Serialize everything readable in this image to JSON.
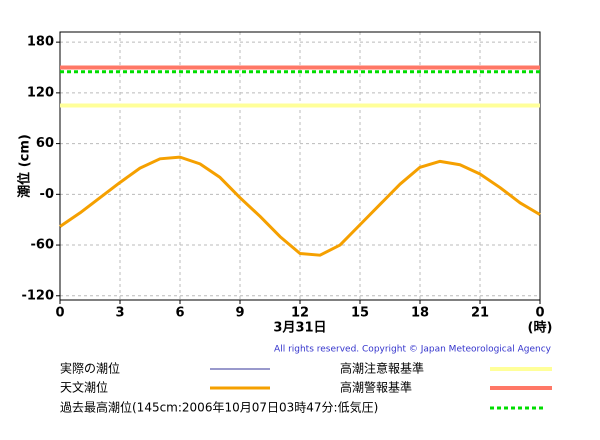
{
  "chart_data": {
    "type": "line",
    "y_label": "潮位 (cm)",
    "x_label": "3月31日",
    "x_unit": "(時)",
    "copyright": "All rights reserved. Copyright © Japan Meteorological Agency",
    "xlim": [
      0,
      24
    ],
    "xticks": [
      0,
      3,
      6,
      9,
      12,
      15,
      18,
      21,
      {
        "value": 24,
        "label": "0"
      }
    ],
    "ylim": [
      -125,
      192
    ],
    "yticks": [
      180,
      120,
      60,
      {
        "value": 0,
        "label": "-0"
      },
      -60,
      -120
    ],
    "grid": true,
    "x": [
      0,
      1,
      2,
      3,
      4,
      5,
      6,
      7,
      8,
      9,
      10,
      11,
      12,
      13,
      14,
      15,
      16,
      17,
      18,
      19,
      20,
      21,
      22,
      23,
      24
    ],
    "series": [
      {
        "name": "実際の潮位",
        "color": "#333399",
        "values": [
          null,
          null,
          null,
          null,
          null,
          null,
          null,
          null,
          null,
          null,
          null,
          null,
          null,
          null,
          null,
          null,
          null,
          null,
          null,
          null,
          null,
          null,
          null,
          null,
          null
        ]
      },
      {
        "name": "天文潮位",
        "color": "#f5a000",
        "values": [
          -38,
          -22,
          -4,
          14,
          31,
          42,
          44,
          36,
          20,
          -4,
          -26,
          -50,
          -70,
          -72,
          -60,
          -36,
          -12,
          12,
          32,
          39,
          35,
          24,
          8,
          -10,
          -24
        ]
      }
    ],
    "reference_lines": [
      {
        "name": "高潮注意報基準",
        "color": "#ffff99",
        "value": 105
      },
      {
        "name": "高潮警報基準",
        "color": "#ff7766",
        "value": 150
      },
      {
        "name": "過去最高潮位(145cm:2006年10月07日03時47分:低気圧)",
        "color": "#00dd00",
        "value": 145,
        "dashed": true
      }
    ]
  }
}
